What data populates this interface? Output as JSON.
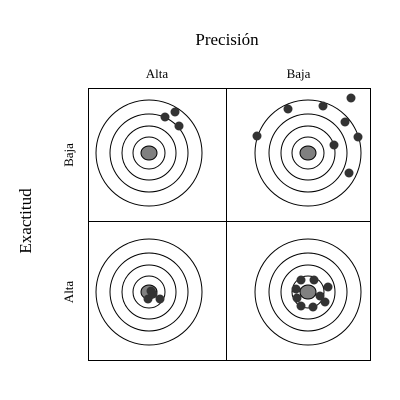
{
  "diagram": {
    "title_top": "Precisión",
    "title_left": "Exactitud",
    "columns": [
      "Alta",
      "Baja"
    ],
    "rows": [
      "Baja",
      "Alta"
    ],
    "colors": {
      "line": "#000000",
      "ring": "#000000",
      "bullseye": "#808080",
      "shot": "#333333"
    },
    "panels": [
      {
        "row": "Baja",
        "column": "Alta",
        "description": "grouped shots away from center"
      },
      {
        "row": "Baja",
        "column": "Baja",
        "description": "scattered shots on outer ring"
      },
      {
        "row": "Alta",
        "column": "Alta",
        "description": "grouped shots at center"
      },
      {
        "row": "Alta",
        "column": "Baja",
        "description": "shots spread around center"
      }
    ]
  }
}
